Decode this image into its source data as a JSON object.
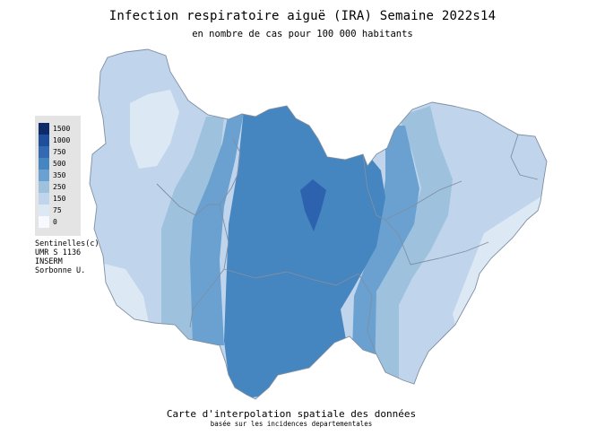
{
  "title": "Infection respiratoire aiguë (IRA) Semaine 2022s14",
  "subtitle": "en nombre de cas pour 100 000 habitants",
  "legend": [
    {
      "label": "1500",
      "color": "#0e2a6a"
    },
    {
      "label": "1000",
      "color": "#1f4e9a"
    },
    {
      "label": "750",
      "color": "#3269b0"
    },
    {
      "label": "500",
      "color": "#4585c0"
    },
    {
      "label": "350",
      "color": "#6aa1d0"
    },
    {
      "label": "250",
      "color": "#9ec2de"
    },
    {
      "label": "150",
      "color": "#c0d5ec"
    },
    {
      "label": "75",
      "color": "#dde8f5"
    },
    {
      "label": "0",
      "color": "#f6f9fd"
    }
  ],
  "credits": [
    "Sentinelles(c)",
    "UMR S 1136",
    "INSERM",
    "Sorbonne U."
  ],
  "footer": {
    "line1": "Carte d'interpolation spatiale des données",
    "line2": "basée sur les incidences departementales"
  }
}
